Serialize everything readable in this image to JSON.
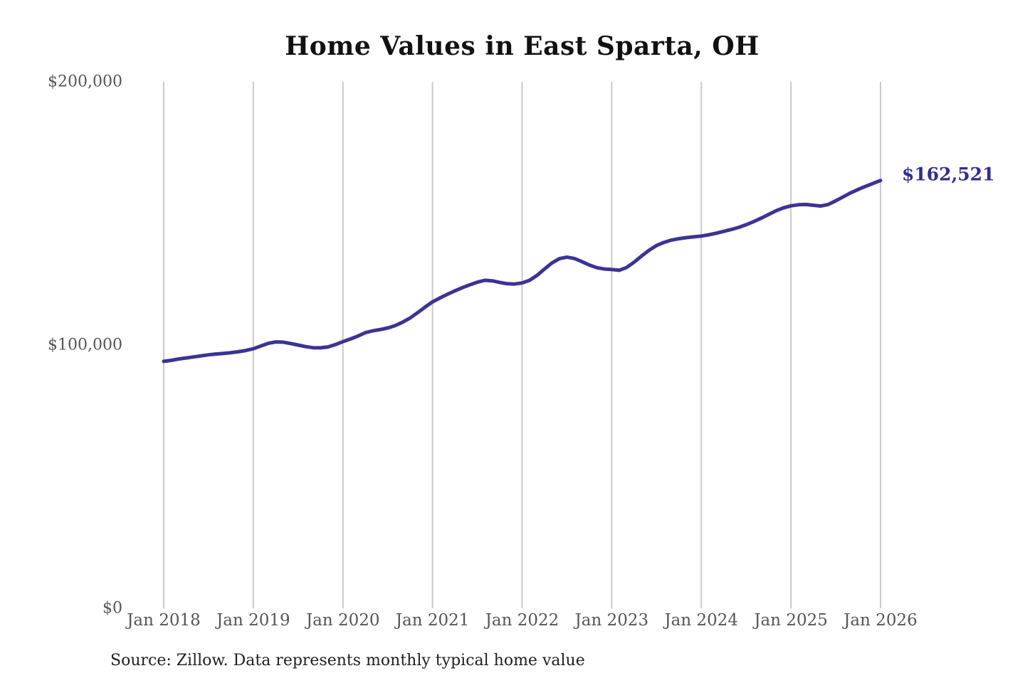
{
  "chart_data": {
    "type": "line",
    "title": "Home Values in East Sparta, OH",
    "source": "Source: Zillow. Data represents monthly typical home value",
    "annotation": {
      "label": "$162,521",
      "value": 162521
    },
    "xlabel": "",
    "ylabel": "",
    "ylim": [
      0,
      200000
    ],
    "grid": "vertical-only",
    "legend": "none",
    "x_ticks": [
      "Jan 2018",
      "Jan 2019",
      "Jan 2020",
      "Jan 2021",
      "Jan 2022",
      "Jan 2023",
      "Jan 2024",
      "Jan 2025",
      "Jan 2026"
    ],
    "y_ticks": [
      {
        "label": "$0",
        "value": 0
      },
      {
        "label": "$100,000",
        "value": 100000
      },
      {
        "label": "$200,000",
        "value": 200000
      }
    ],
    "series_name": "Typical home value (monthly)",
    "x_start": "Jan 2018",
    "x_end": "Jan 2026",
    "x_interval": "monthly",
    "values": [
      93800,
      94200,
      94700,
      95100,
      95500,
      95900,
      96300,
      96600,
      96850,
      97100,
      97450,
      97950,
      98600,
      99650,
      100650,
      101200,
      101100,
      100600,
      100000,
      99400,
      99000,
      98950,
      99300,
      100200,
      101300,
      102300,
      103400,
      104700,
      105400,
      105900,
      106500,
      107400,
      108700,
      110300,
      112300,
      114400,
      116400,
      117900,
      119300,
      120600,
      121800,
      122900,
      123900,
      124600,
      124400,
      123800,
      123300,
      123200,
      123600,
      124600,
      126500,
      128900,
      131200,
      132800,
      133400,
      132900,
      131700,
      130400,
      129400,
      128900,
      128700,
      128400,
      129500,
      131500,
      133800,
      136000,
      137800,
      139000,
      139900,
      140400,
      140800,
      141100,
      141400,
      141900,
      142500,
      143200,
      143900,
      144700,
      145700,
      146900,
      148200,
      149600,
      151000,
      152100,
      152900,
      153300,
      153400,
      153100,
      152800,
      153400,
      154800,
      156300,
      157800,
      159100,
      160300,
      161400,
      162521
    ],
    "colors": {
      "line": "#3b3494",
      "annotation": "#322d90",
      "grid": "#c9c9c9",
      "tick_text": "#565656",
      "title_text": "#111111",
      "source_text": "#1f1f1f",
      "background": "#ffffff"
    }
  }
}
